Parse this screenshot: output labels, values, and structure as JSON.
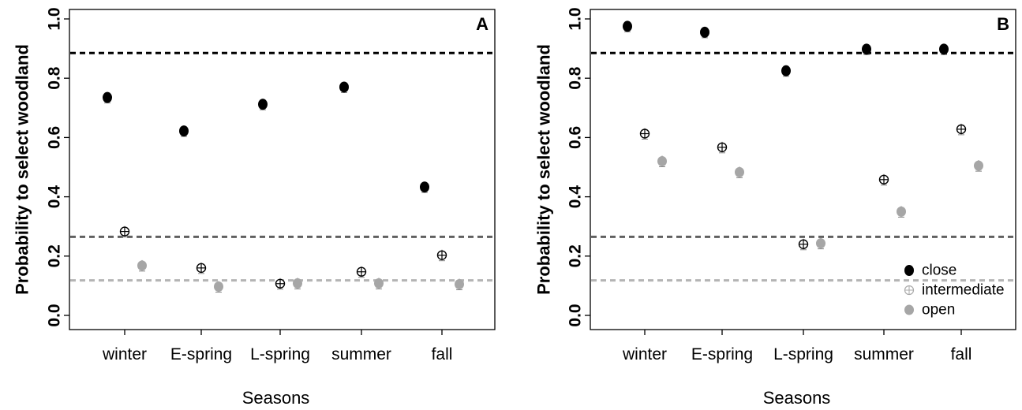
{
  "chart_data": [
    {
      "type": "scatter",
      "panel_label": "A",
      "categories": [
        "winter",
        "E-spring",
        "L-spring",
        "summer",
        "fall"
      ],
      "xlabel": "Seasons",
      "ylabel": "Probability to select woodland",
      "ylim": [
        0,
        1
      ],
      "yticks": [
        "0.0",
        "0.2",
        "0.4",
        "0.6",
        "0.8",
        "1.0"
      ],
      "series": [
        {
          "name": "close",
          "values": [
            0.735,
            0.622,
            0.712,
            0.77,
            0.433
          ],
          "color": "#000000"
        },
        {
          "name": "intermediate",
          "values": [
            0.283,
            0.16,
            0.107,
            0.147,
            0.203
          ],
          "color": "#ffffff"
        },
        {
          "name": "open",
          "values": [
            0.168,
            0.097,
            0.108,
            0.108,
            0.105
          ],
          "color": "#a6a6a6"
        }
      ],
      "reference_lines": [
        {
          "value": 0.885,
          "color": "#000000"
        },
        {
          "value": 0.265,
          "color": "#606060"
        },
        {
          "value": 0.118,
          "color": "#b4b4b4"
        }
      ]
    },
    {
      "type": "scatter",
      "panel_label": "B",
      "categories": [
        "winter",
        "E-spring",
        "L-spring",
        "summer",
        "fall"
      ],
      "xlabel": "Seasons",
      "ylabel": "Probability to select woodland",
      "ylim": [
        0,
        1
      ],
      "yticks": [
        "0.0",
        "0.2",
        "0.4",
        "0.6",
        "0.8",
        "1.0"
      ],
      "legend_position": "bottom-right",
      "series": [
        {
          "name": "close",
          "values": [
            0.975,
            0.955,
            0.825,
            0.898,
            0.898
          ],
          "color": "#000000"
        },
        {
          "name": "intermediate",
          "values": [
            0.613,
            0.567,
            0.24,
            0.458,
            0.628
          ],
          "color": "#ffffff"
        },
        {
          "name": "open",
          "values": [
            0.52,
            0.483,
            0.243,
            0.35,
            0.505
          ],
          "color": "#a6a6a6"
        }
      ],
      "reference_lines": [
        {
          "value": 0.885,
          "color": "#000000"
        },
        {
          "value": 0.265,
          "color": "#606060"
        },
        {
          "value": 0.118,
          "color": "#b4b4b4"
        }
      ],
      "legend": [
        "close",
        "intermediate",
        "open"
      ]
    }
  ]
}
